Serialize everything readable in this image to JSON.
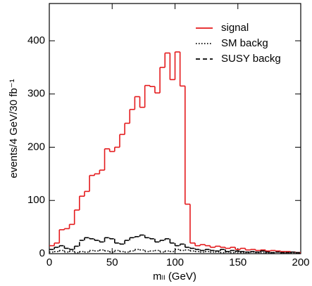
{
  "chart_data": {
    "type": "histogram",
    "x_label": "mₗₗ (GeV)",
    "y_label": "events/4 GeV/30 fb⁻¹",
    "bins": [
      0,
      4,
      8,
      12,
      16,
      20,
      24,
      28,
      32,
      36,
      40,
      44,
      48,
      52,
      56,
      60,
      64,
      68,
      72,
      76,
      80,
      84,
      88,
      92,
      96,
      100,
      104,
      108,
      112,
      116,
      120,
      124,
      128,
      132,
      136,
      140,
      144,
      148,
      152,
      156,
      160,
      164,
      168,
      172,
      176,
      180,
      184,
      188,
      192,
      196,
      200
    ],
    "xlim": [
      0,
      200
    ],
    "xticks": [
      0,
      50,
      100,
      150,
      200
    ],
    "ylim": [
      0,
      470
    ],
    "yticks": [
      0,
      100,
      200,
      300,
      400
    ],
    "legend": "upper right",
    "series": [
      {
        "name": "signal",
        "color": "#e41a1c",
        "dash": "solid",
        "values": [
          15,
          20,
          45,
          47,
          55,
          82,
          108,
          117,
          147,
          150,
          157,
          197,
          192,
          200,
          224,
          245,
          271,
          295,
          275,
          316,
          314,
          302,
          350,
          377,
          327,
          379,
          315,
          93,
          20,
          15,
          17,
          15,
          12,
          14,
          12,
          10,
          12,
          8,
          10,
          7,
          8,
          6,
          7,
          5,
          6,
          5,
          4,
          4,
          3,
          2
        ]
      },
      {
        "name": "SM backg",
        "color": "#000000",
        "dash": "dotted",
        "values": [
          3,
          4,
          6,
          3,
          5,
          2,
          4,
          3,
          6,
          5,
          7,
          5,
          3,
          6,
          4,
          3,
          5,
          8,
          7,
          4,
          5,
          6,
          3,
          5,
          4,
          8,
          6,
          7,
          5,
          4,
          3,
          4,
          3,
          3,
          2,
          3,
          2,
          4,
          2,
          2,
          3,
          2,
          2,
          1,
          2,
          3,
          1,
          2,
          1,
          1
        ]
      },
      {
        "name": "SUSY backg",
        "color": "#000000",
        "dash": "dashed",
        "values": [
          8,
          12,
          15,
          10,
          8,
          14,
          25,
          30,
          28,
          25,
          22,
          30,
          28,
          20,
          18,
          25,
          30,
          32,
          35,
          30,
          28,
          22,
          25,
          28,
          20,
          15,
          18,
          12,
          10,
          8,
          6,
          8,
          6,
          5,
          8,
          4,
          6,
          5,
          4,
          3,
          4,
          3,
          5,
          3,
          2,
          3,
          2,
          2,
          3,
          2
        ]
      }
    ]
  }
}
